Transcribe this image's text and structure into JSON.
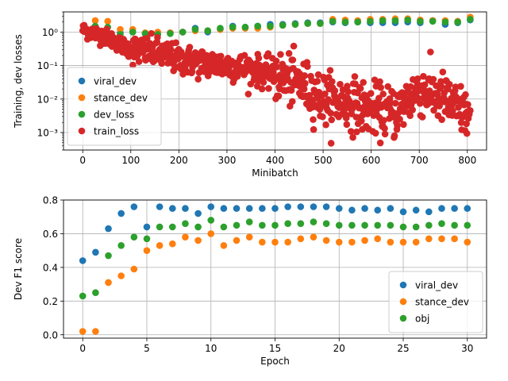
{
  "chart_data": [
    {
      "type": "scatter",
      "xlabel": "Minibatch",
      "ylabel": "Training, dev losses",
      "yscale": "log",
      "xlim": [
        -40,
        840
      ],
      "ylim": [
        0.0003,
        4
      ],
      "xticks": [
        0,
        100,
        200,
        300,
        400,
        500,
        600,
        700,
        800
      ],
      "yticks": [
        {
          "value": 1,
          "label": "10⁰"
        },
        {
          "value": 0.1,
          "label": "10⁻¹"
        },
        {
          "value": 0.01,
          "label": "10⁻²"
        },
        {
          "value": 0.001,
          "label": "10⁻³"
        }
      ],
      "grid": true,
      "legend": {
        "position": "lower-left",
        "entries": [
          "viral_dev",
          "stance_dev",
          "dev_loss",
          "train_loss"
        ]
      },
      "series": [
        {
          "name": "viral_dev",
          "color": "#1f77b4",
          "x": [
            78,
            104,
            130,
            156,
            182,
            208,
            234,
            260,
            286,
            312,
            338,
            364,
            390,
            416,
            442,
            468,
            494,
            520,
            546,
            572,
            598,
            624,
            650,
            676,
            702,
            728,
            754,
            780,
            806
          ],
          "y": [
            0.95,
            1.0,
            0.9,
            0.85,
            0.95,
            1.0,
            1.3,
            1.0,
            1.2,
            1.5,
            1.4,
            1.5,
            1.7,
            1.7,
            1.8,
            1.9,
            1.9,
            2.0,
            1.9,
            2.0,
            1.9,
            1.9,
            1.9,
            2.0,
            1.9,
            2.2,
            1.7,
            1.9,
            2.3
          ]
        },
        {
          "name": "stance_dev",
          "color": "#ff7f0e",
          "x": [
            26,
            52,
            78,
            104,
            130,
            156,
            182,
            208,
            234,
            260,
            286,
            312,
            338,
            364,
            390,
            416,
            442,
            468,
            494,
            520,
            546,
            572,
            598,
            624,
            650,
            676,
            702,
            728,
            754,
            780,
            806
          ],
          "y": [
            2.2,
            2.1,
            1.2,
            1.2,
            0.95,
            1.0,
            0.95,
            1.0,
            1.1,
            1.1,
            1.2,
            1.3,
            1.3,
            1.3,
            1.4,
            1.6,
            1.7,
            1.8,
            1.8,
            2.4,
            2.3,
            2.2,
            2.4,
            2.4,
            2.5,
            2.5,
            2.3,
            2.2,
            2.2,
            2.1,
            2.8
          ]
        },
        {
          "name": "dev_loss",
          "color": "#2ca02c",
          "x": [
            26,
            52,
            78,
            104,
            130,
            156,
            182,
            208,
            234,
            260,
            286,
            312,
            338,
            364,
            390,
            416,
            442,
            468,
            494,
            520,
            546,
            572,
            598,
            624,
            650,
            676,
            702,
            728,
            754,
            780,
            806
          ],
          "y": [
            1.5,
            1.4,
            0.85,
            1.0,
            0.9,
            0.85,
            0.9,
            1.0,
            1.2,
            1.1,
            1.3,
            1.4,
            1.4,
            1.5,
            1.5,
            1.6,
            1.7,
            1.8,
            1.8,
            2.1,
            2.0,
            2.0,
            2.1,
            2.2,
            2.2,
            2.3,
            2.1,
            2.1,
            2.0,
            2.0,
            2.4
          ]
        },
        {
          "name": "train_loss",
          "color": "#d62728",
          "generated": true,
          "n": 820,
          "x_range": [
            0,
            806
          ],
          "trend": [
            {
              "x": 0,
              "y": 1.2
            },
            {
              "x": 50,
              "y": 0.7
            },
            {
              "x": 100,
              "y": 0.3
            },
            {
              "x": 150,
              "y": 0.25
            },
            {
              "x": 200,
              "y": 0.15
            },
            {
              "x": 250,
              "y": 0.12
            },
            {
              "x": 300,
              "y": 0.1
            },
            {
              "x": 350,
              "y": 0.08
            },
            {
              "x": 400,
              "y": 0.05
            },
            {
              "x": 450,
              "y": 0.03
            },
            {
              "x": 500,
              "y": 0.01
            },
            {
              "x": 550,
              "y": 0.008
            },
            {
              "x": 600,
              "y": 0.005
            },
            {
              "x": 650,
              "y": 0.004
            },
            {
              "x": 700,
              "y": 0.02
            },
            {
              "x": 750,
              "y": 0.01
            },
            {
              "x": 806,
              "y": 0.003
            }
          ]
        }
      ]
    },
    {
      "type": "scatter",
      "xlabel": "Epoch",
      "ylabel": "Dev F1 score",
      "xlim": [
        -1.5,
        31.5
      ],
      "ylim": [
        -0.02,
        0.8
      ],
      "xticks": [
        0,
        5,
        10,
        15,
        20,
        25,
        30
      ],
      "yticks": [
        0.0,
        0.2,
        0.4,
        0.6,
        0.8
      ],
      "grid": true,
      "legend": {
        "position": "lower-right",
        "entries": [
          "viral_dev",
          "stance_dev",
          "obj"
        ]
      },
      "series": [
        {
          "name": "viral_dev",
          "color": "#1f77b4",
          "x": [
            0,
            1,
            2,
            3,
            4,
            5,
            6,
            7,
            8,
            9,
            10,
            11,
            12,
            13,
            14,
            15,
            16,
            17,
            18,
            19,
            20,
            21,
            22,
            23,
            24,
            25,
            26,
            27,
            28,
            29,
            30
          ],
          "y": [
            0.44,
            0.49,
            0.63,
            0.72,
            0.76,
            0.64,
            0.76,
            0.75,
            0.75,
            0.72,
            0.76,
            0.75,
            0.75,
            0.75,
            0.75,
            0.75,
            0.76,
            0.76,
            0.76,
            0.76,
            0.75,
            0.74,
            0.75,
            0.74,
            0.75,
            0.73,
            0.74,
            0.73,
            0.75,
            0.75,
            0.75
          ]
        },
        {
          "name": "stance_dev",
          "color": "#ff7f0e",
          "x": [
            0,
            1,
            2,
            3,
            4,
            5,
            6,
            7,
            8,
            9,
            10,
            11,
            12,
            13,
            14,
            15,
            16,
            17,
            18,
            19,
            20,
            21,
            22,
            23,
            24,
            25,
            26,
            27,
            28,
            29,
            30
          ],
          "y": [
            0.02,
            0.02,
            0.31,
            0.35,
            0.39,
            0.5,
            0.53,
            0.54,
            0.58,
            0.56,
            0.6,
            0.53,
            0.56,
            0.58,
            0.55,
            0.55,
            0.55,
            0.57,
            0.58,
            0.56,
            0.55,
            0.55,
            0.56,
            0.57,
            0.55,
            0.55,
            0.55,
            0.57,
            0.57,
            0.57,
            0.55
          ]
        },
        {
          "name": "obj",
          "color": "#2ca02c",
          "x": [
            0,
            1,
            2,
            3,
            4,
            5,
            6,
            7,
            8,
            9,
            10,
            11,
            12,
            13,
            14,
            15,
            16,
            17,
            18,
            19,
            20,
            21,
            22,
            23,
            24,
            25,
            26,
            27,
            28,
            29,
            30
          ],
          "y": [
            0.23,
            0.25,
            0.47,
            0.53,
            0.58,
            0.57,
            0.64,
            0.64,
            0.66,
            0.64,
            0.68,
            0.64,
            0.65,
            0.67,
            0.65,
            0.65,
            0.66,
            0.66,
            0.67,
            0.66,
            0.65,
            0.65,
            0.65,
            0.65,
            0.65,
            0.64,
            0.64,
            0.65,
            0.66,
            0.65,
            0.65
          ]
        }
      ]
    }
  ]
}
